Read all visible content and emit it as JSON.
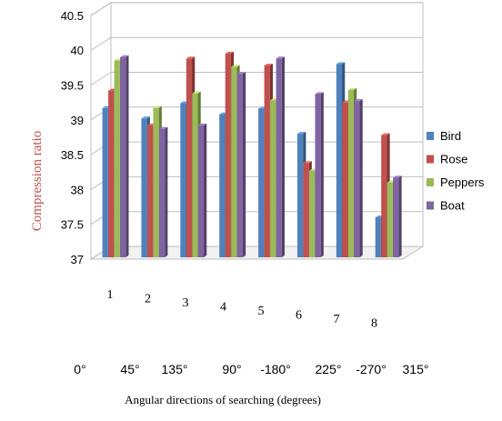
{
  "chart_data": {
    "type": "bar",
    "style": "3d-clustered-column",
    "xlabel": "Angular directions of searching (degrees)",
    "ylabel": "Compression ratio",
    "ylim": [
      37,
      40.5
    ],
    "y_ticks": [
      "37",
      "37.5",
      "38",
      "38.5",
      "39",
      "39.5",
      "40",
      "40.5"
    ],
    "categories": [
      "1",
      "2",
      "3",
      "4",
      "5",
      "6",
      "7",
      "8"
    ],
    "angle_labels": [
      "0°",
      "45°",
      "135°",
      "90°",
      "-180°",
      "225°",
      "-270°",
      "315°"
    ],
    "grid": true,
    "legend_position": "right",
    "series": [
      {
        "name": "Bird",
        "color": "#4f81bd",
        "values": [
          39.17,
          39.02,
          39.24,
          39.08,
          39.16,
          38.8,
          39.8,
          37.6
        ]
      },
      {
        "name": "Rose",
        "color": "#c0504d",
        "values": [
          39.42,
          38.92,
          39.88,
          39.95,
          39.78,
          38.38,
          39.25,
          38.78
        ]
      },
      {
        "name": "Peppers",
        "color": "#9bbb59",
        "values": [
          39.85,
          39.17,
          39.38,
          39.76,
          39.28,
          38.27,
          39.43,
          38.1
        ]
      },
      {
        "name": "Boat",
        "color": "#8064a2",
        "values": [
          39.9,
          38.87,
          38.92,
          39.66,
          39.88,
          39.37,
          39.27,
          38.17
        ]
      }
    ]
  }
}
